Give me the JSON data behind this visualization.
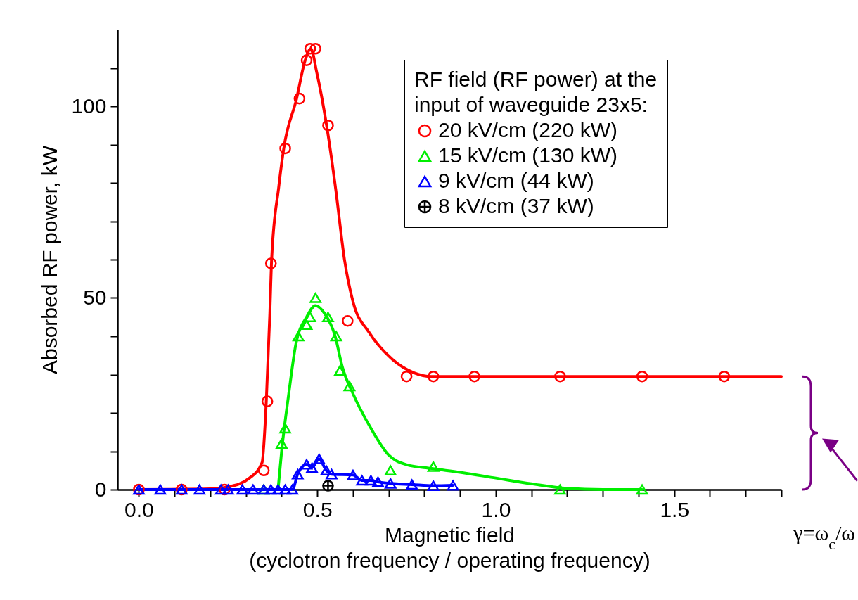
{
  "chart_data": {
    "type": "line",
    "xlabel": "Magnetic field\n(cyclotron frequency / operating frequency)",
    "ylabel": "Absorbed RF power, kW",
    "legend_title": "RF field (RF power) at the\ninput of waveguide 23x5:",
    "legend": "top right",
    "grid": false,
    "xlim": [
      -0.06,
      1.8
    ],
    "ylim": [
      0,
      120
    ],
    "xticks": [
      {
        "value": 0,
        "label": "0.0"
      },
      {
        "value": 0.1,
        "label": null
      },
      {
        "value": 0.2,
        "label": null
      },
      {
        "value": 0.3,
        "label": null
      },
      {
        "value": 0.4,
        "label": null
      },
      {
        "value": 0.5,
        "label": "0.5"
      },
      {
        "value": 0.6,
        "label": null
      },
      {
        "value": 0.7,
        "label": null
      },
      {
        "value": 0.8,
        "label": null
      },
      {
        "value": 0.9,
        "label": null
      },
      {
        "value": 1,
        "label": "1.0"
      },
      {
        "value": 1.1,
        "label": null
      },
      {
        "value": 1.2,
        "label": null
      },
      {
        "value": 1.3,
        "label": null
      },
      {
        "value": 1.4,
        "label": null
      },
      {
        "value": 1.5,
        "label": "1.5"
      },
      {
        "value": 1.6,
        "label": null
      },
      {
        "value": 1.7,
        "label": null
      },
      {
        "value": 1.8,
        "label": null
      }
    ],
    "yticks": [
      0,
      {
        "value": 10,
        "label": null
      },
      {
        "value": 20,
        "label": null
      },
      {
        "value": 30,
        "label": null
      },
      {
        "value": 40,
        "label": null
      },
      50,
      {
        "value": 60,
        "label": null
      },
      {
        "value": 70,
        "label": null
      },
      {
        "value": 80,
        "label": null
      },
      {
        "value": 90,
        "label": null
      },
      100,
      {
        "value": 110,
        "label": null
      }
    ],
    "annotations": [
      "γ=ω$_{c}$/ω"
    ],
    "series": [
      {
        "color": "#ff0000",
        "marker": "none",
        "x": [
          0,
          0.2,
          0.25,
          0.31,
          0.345,
          0.357,
          0.367,
          0.372,
          0.392,
          0.406,
          0.442,
          0.466,
          0.482,
          0.498,
          0.526,
          0.552,
          0.576,
          0.6,
          0.645,
          0.71,
          0.77,
          0.82,
          1.8
        ],
        "values": [
          0,
          0.2,
          0.7,
          3,
          7,
          23,
          46,
          60,
          79,
          89,
          102,
          112,
          115,
          109,
          95,
          78,
          60,
          49,
          41,
          34,
          30.5,
          29.5,
          29.5
        ]
      },
      {
        "type": "scatter",
        "name": "20 kV/cm (220 kW)",
        "color": "#ff0000",
        "marker": "circle",
        "x": [
          0,
          0.12,
          0.24,
          0.35,
          0.36,
          0.37,
          0.41,
          0.45,
          0.47,
          0.48,
          0.495,
          0.53,
          0.585,
          0.75,
          0.825,
          0.94,
          1.18,
          1.41,
          1.64
        ],
        "values": [
          0,
          0,
          0,
          5,
          23,
          59,
          89,
          102,
          112,
          115,
          115,
          95,
          44,
          29.5,
          29.5,
          29.5,
          29.5,
          29.5,
          29.5
        ]
      },
      {
        "type": "scatter",
        "name": "15 kV/cm (130 kW)",
        "color": "#00ee00",
        "marker": "triangle",
        "x": [
          0.35,
          0.4,
          0.41,
          0.447,
          0.47,
          0.48,
          0.495,
          0.53,
          0.553,
          0.563,
          0.59,
          0.705,
          0.825,
          1.18,
          1.41
        ],
        "values": [
          0,
          12,
          16,
          40,
          43,
          45,
          50,
          45,
          40,
          31,
          27,
          5,
          6,
          0,
          0
        ]
      },
      {
        "color": "#00ee00",
        "marker": "none",
        "x": [
          0.39,
          0.4,
          0.42,
          0.44,
          0.47,
          0.495,
          0.52,
          0.55,
          0.57,
          0.6,
          0.65,
          0.7,
          0.75,
          0.82,
          0.9,
          1.0,
          1.1,
          1.2,
          1.3,
          1.41
        ],
        "values": [
          0,
          10,
          25,
          38,
          45,
          48,
          46,
          40,
          32,
          25,
          16,
          9,
          6.5,
          5.5,
          4.5,
          3,
          1.5,
          0.3,
          0,
          0
        ]
      },
      {
        "name": "9 kV/cm (44 kW)",
        "color": "#0000ff",
        "marker": "triangle",
        "x": [
          0,
          0.06,
          0.12,
          0.17,
          0.23,
          0.25,
          0.29,
          0.32,
          0.35,
          0.37,
          0.39,
          0.41,
          0.43,
          0.445,
          0.47,
          0.485,
          0.505,
          0.525,
          0.54,
          0.6,
          0.625,
          0.65,
          0.67,
          0.705,
          0.765,
          0.825,
          0.88
        ],
        "values": [
          0,
          0,
          0,
          0,
          0,
          0,
          0,
          0,
          0,
          0,
          0,
          0,
          0,
          4,
          6.6,
          5.7,
          8,
          5,
          4,
          3.8,
          2.4,
          2.4,
          2,
          1.6,
          1.3,
          1,
          1.1
        ]
      },
      {
        "type": "scatter",
        "name": "8 kV/cm (37 kW)",
        "color": "#000000",
        "marker": "cross",
        "x": [
          0.53
        ],
        "values": [
          1
        ]
      }
    ]
  }
}
